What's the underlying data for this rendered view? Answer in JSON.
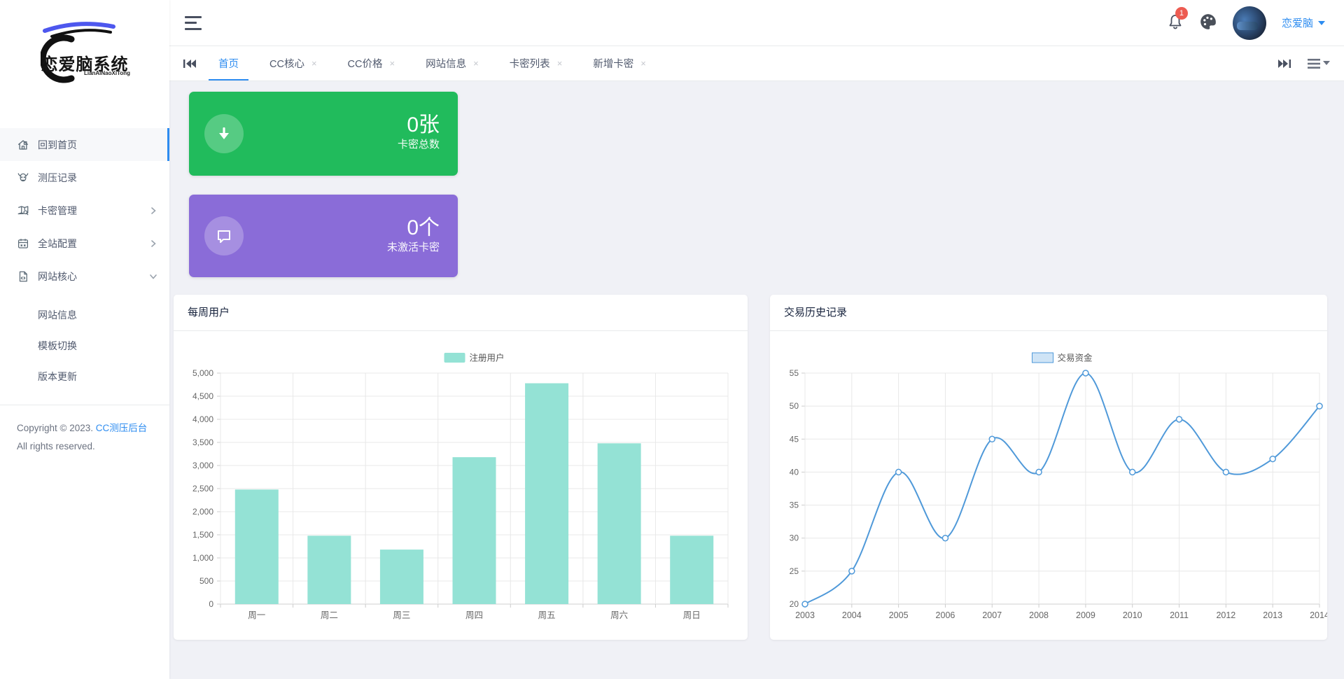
{
  "brand": {
    "name": "恋爱脑系统",
    "latin": "LianAiNaoXiTong"
  },
  "header": {
    "username": "恋爱脑",
    "notification_badge": "1"
  },
  "tabbar": {
    "tabs": [
      {
        "label": "首页",
        "active": true,
        "closable": false
      },
      {
        "label": "CC核心",
        "active": false,
        "closable": true
      },
      {
        "label": "CC价格",
        "active": false,
        "closable": true
      },
      {
        "label": "网站信息",
        "active": false,
        "closable": true
      },
      {
        "label": "卡密列表",
        "active": false,
        "closable": true
      },
      {
        "label": "新增卡密",
        "active": false,
        "closable": true
      }
    ]
  },
  "sidebar": {
    "items": [
      {
        "id": "home",
        "label": "回到首页",
        "icon": "home-icon",
        "active": true
      },
      {
        "id": "pressure-records",
        "label": "测压记录",
        "icon": "bull-icon"
      },
      {
        "id": "card-key-management",
        "label": "卡密管理",
        "icon": "map-search-icon",
        "arrow": "right"
      },
      {
        "id": "site-config",
        "label": "全站配置",
        "icon": "calendar-icon",
        "arrow": "right"
      },
      {
        "id": "site-core",
        "label": "网站核心",
        "icon": "file-icon",
        "arrow": "down",
        "children": [
          {
            "id": "site-info",
            "label": "网站信息"
          },
          {
            "id": "template-switch",
            "label": "模板切换"
          },
          {
            "id": "version-update",
            "label": "版本更新"
          }
        ]
      }
    ],
    "copyright_prefix": "Copyright © 2023.",
    "copyright_link": "CC测压后台",
    "copyright_suffix": "All rights reserved."
  },
  "stat_cards": [
    {
      "value": "0张",
      "label": "卡密总数",
      "color": "#21bb5c",
      "icon": "download-icon"
    },
    {
      "value": "0个",
      "label": "未激活卡密",
      "color": "#8a6cd8",
      "icon": "chat-icon"
    }
  ],
  "colors": {
    "accent": "#2d8cf0",
    "green": "#21bb5c",
    "purple": "#8a6cd8",
    "badge": "#ed5b51",
    "bar": "#94e2d5",
    "line": "#4f99d9",
    "legend_line_fill": "#cfe4f6"
  },
  "chart_data": [
    {
      "type": "bar",
      "title": "每周用户",
      "legend": "注册用户",
      "categories": [
        "周一",
        "周二",
        "周三",
        "周四",
        "周五",
        "周六",
        "周日"
      ],
      "values": [
        2480,
        1480,
        1180,
        3180,
        4780,
        3480,
        1480
      ],
      "ylabel": "",
      "xlabel": "",
      "ylim": [
        0,
        5000
      ],
      "ytick_step": 500,
      "grid": true,
      "legend_position": "top-center",
      "bar_color": "#94e2d5"
    },
    {
      "type": "line",
      "title": "交易历史记录",
      "legend": "交易资金",
      "x": [
        "2003",
        "2004",
        "2005",
        "2006",
        "2007",
        "2008",
        "2009",
        "2010",
        "2011",
        "2012",
        "2013",
        "2014"
      ],
      "values": [
        20,
        25,
        40,
        30,
        45,
        40,
        55,
        40,
        48,
        40,
        42,
        50
      ],
      "ylabel": "",
      "xlabel": "",
      "ylim": [
        20,
        55
      ],
      "ytick_step": 5,
      "grid": true,
      "smooth": true,
      "legend_position": "top-center",
      "line_color": "#4f99d9",
      "marker": "hollow-circle"
    }
  ]
}
